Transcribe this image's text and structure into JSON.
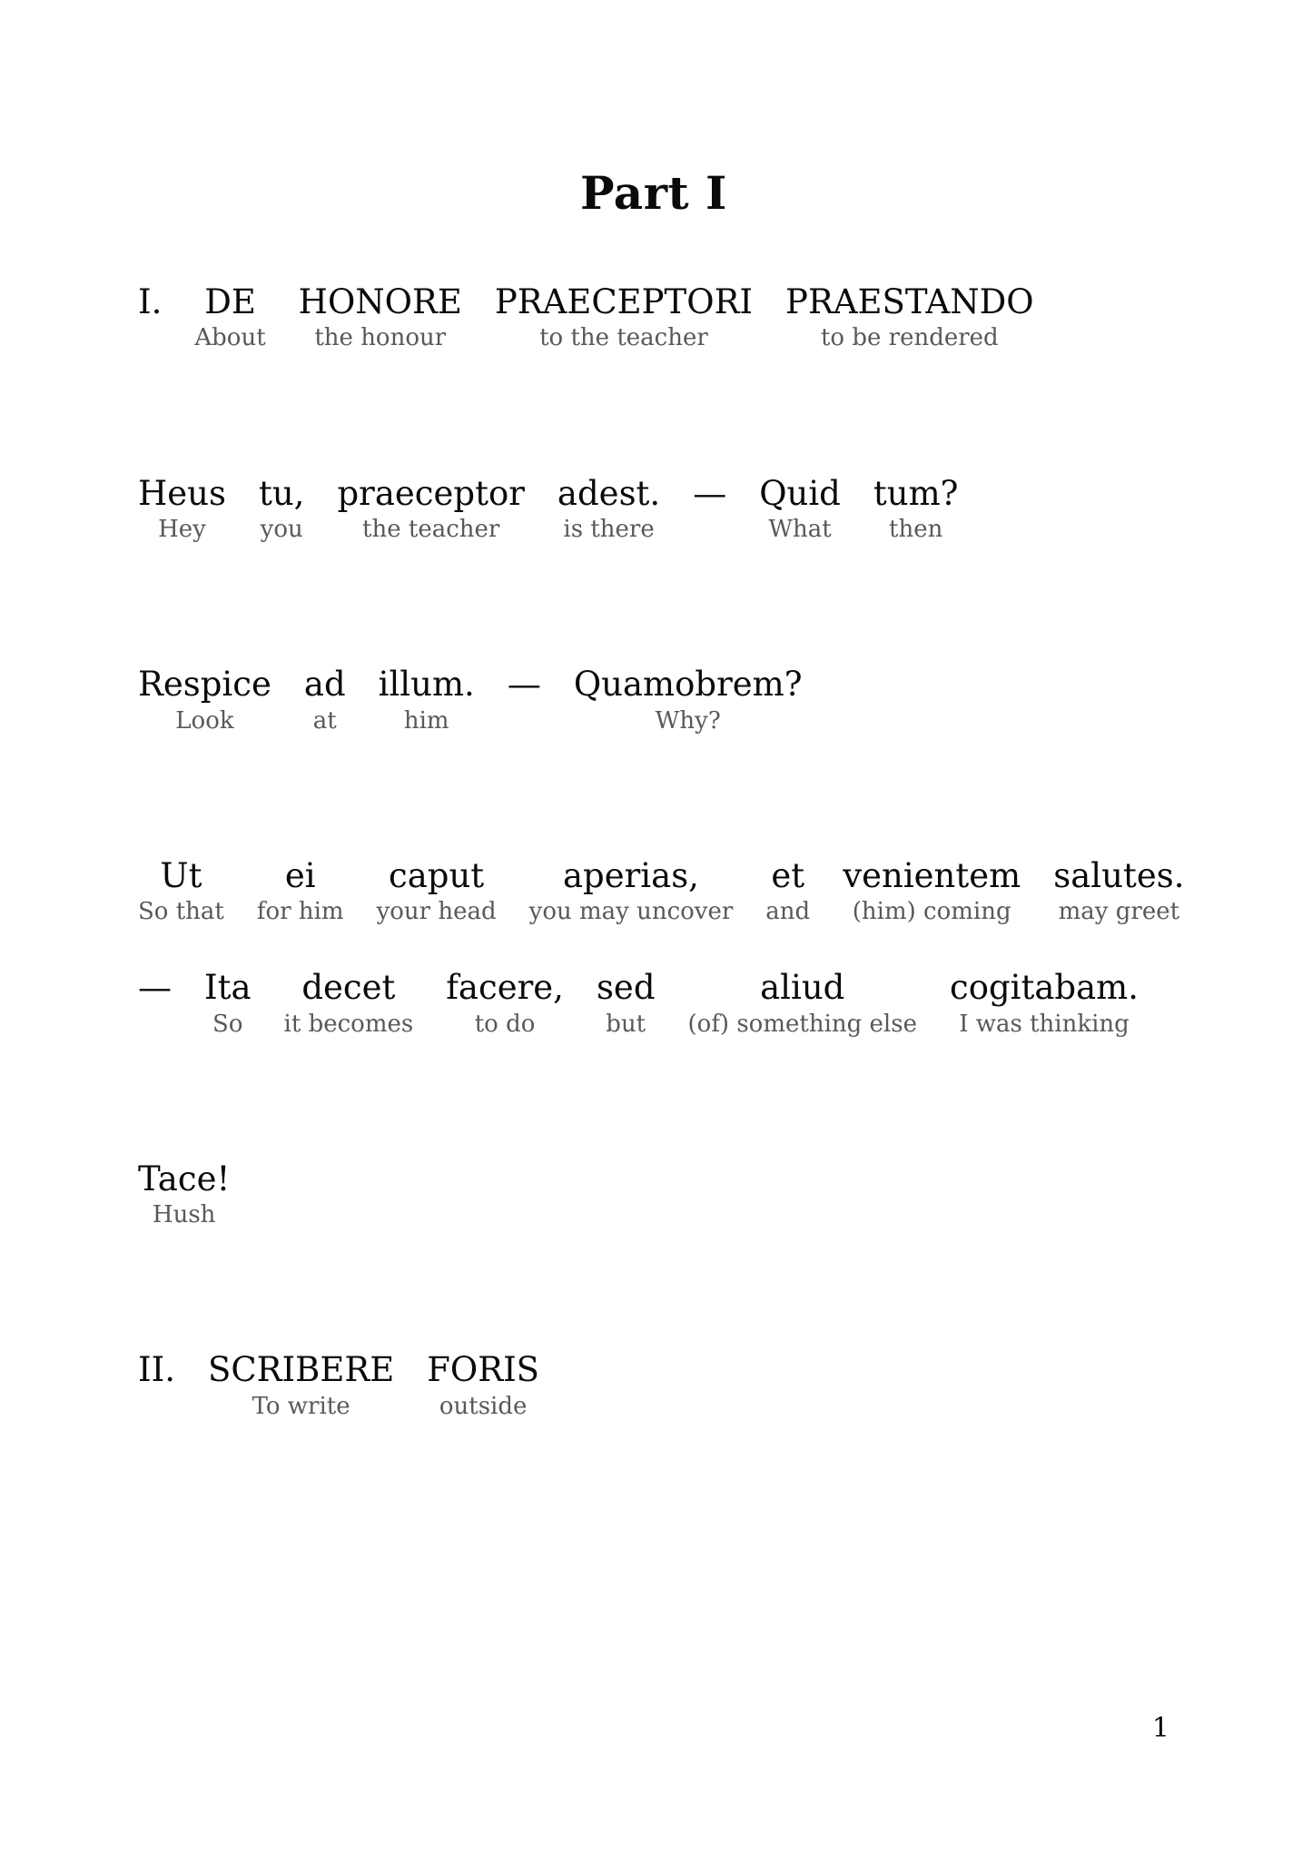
{
  "page": {
    "title": "Part I",
    "page_number": "1"
  },
  "colors": {
    "background": "#ffffff",
    "latin_text": "#0a0a0a",
    "gloss_text": "#595959"
  },
  "lines": [
    {
      "name": "section-1-heading",
      "words": [
        {
          "la": "I.",
          "en": ""
        },
        {
          "la": "DE",
          "en": "About"
        },
        {
          "la": "HONORE",
          "en": "the honour"
        },
        {
          "la": "PRAECEPTORI",
          "en": "to the teacher"
        },
        {
          "la": "PRAESTANDO",
          "en": "to be rendered"
        }
      ]
    },
    {
      "name": "dialogue-line-1",
      "words": [
        {
          "la": "Heus",
          "en": "Hey"
        },
        {
          "la": "tu,",
          "en": "you"
        },
        {
          "la": "praeceptor",
          "en": "the teacher"
        },
        {
          "la": "adest.",
          "en": "is there"
        },
        {
          "la": "—",
          "en": ""
        },
        {
          "la": "Quid",
          "en": "What"
        },
        {
          "la": "tum?",
          "en": "then"
        }
      ]
    },
    {
      "name": "dialogue-line-2",
      "words": [
        {
          "la": "Respice",
          "en": "Look"
        },
        {
          "la": "ad",
          "en": "at"
        },
        {
          "la": "illum.",
          "en": "him"
        },
        {
          "la": "—",
          "en": ""
        },
        {
          "la": "Quamobrem?",
          "en": "Why?"
        }
      ]
    },
    {
      "name": "dialogue-line-3",
      "words": [
        {
          "la": "Ut",
          "en": "So that"
        },
        {
          "la": "ei",
          "en": "for him"
        },
        {
          "la": "caput",
          "en": "your head"
        },
        {
          "la": "aperias,",
          "en": "you may uncover"
        },
        {
          "la": "et",
          "en": "and"
        },
        {
          "la": "venientem",
          "en": "(him) coming"
        },
        {
          "la": "salutes.",
          "en": "may greet"
        }
      ]
    },
    {
      "name": "dialogue-line-4",
      "words": [
        {
          "la": "—",
          "en": ""
        },
        {
          "la": "Ita",
          "en": "So"
        },
        {
          "la": "decet",
          "en": "it becomes"
        },
        {
          "la": "facere,",
          "en": "to do"
        },
        {
          "la": "sed",
          "en": "but"
        },
        {
          "la": "aliud",
          "en": "(of) something else"
        },
        {
          "la": "cogitabam.",
          "en": "I was thinking"
        }
      ]
    },
    {
      "name": "dialogue-line-5",
      "words": [
        {
          "la": "Tace!",
          "en": "Hush"
        }
      ]
    },
    {
      "name": "section-2-heading",
      "words": [
        {
          "la": "II.",
          "en": ""
        },
        {
          "la": "SCRIBERE",
          "en": "To write"
        },
        {
          "la": "FORIS",
          "en": "outside"
        }
      ]
    }
  ]
}
